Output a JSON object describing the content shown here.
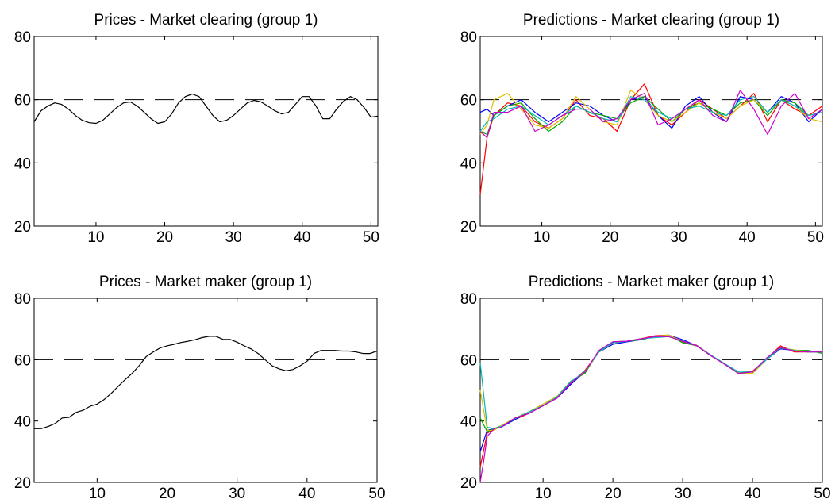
{
  "chart_data": [
    {
      "type": "line",
      "title": "Prices - Market clearing (group 1)",
      "xlabel": "",
      "ylabel": "",
      "xlim": [
        1,
        51
      ],
      "ylim": [
        20,
        80
      ],
      "xticks": [
        10,
        20,
        30,
        40,
        50
      ],
      "yticks": [
        20,
        40,
        60,
        80
      ],
      "grid": false,
      "reference_line": {
        "y": 60,
        "style": "dashed",
        "color": "#000000"
      },
      "series": [
        {
          "color": "#000000",
          "x": [
            1,
            2,
            3,
            4,
            5,
            6,
            7,
            8,
            9,
            10,
            11,
            12,
            13,
            14,
            15,
            16,
            17,
            18,
            19,
            20,
            21,
            22,
            23,
            24,
            25,
            26,
            27,
            28,
            29,
            30,
            31,
            32,
            33,
            34,
            35,
            36,
            37,
            38,
            39,
            40,
            41,
            42,
            43,
            44,
            45,
            46,
            47,
            48,
            49,
            50,
            51
          ],
          "y": [
            53,
            56.5,
            58,
            59,
            58.5,
            57,
            55,
            53.5,
            52.7,
            52.5,
            53.5,
            55.5,
            57.5,
            59,
            59.3,
            58,
            56,
            54,
            52.5,
            53,
            55.5,
            59,
            61,
            61.8,
            61,
            58,
            55,
            53,
            53.5,
            55,
            57,
            59,
            59.8,
            59.3,
            58,
            56.5,
            55.5,
            56,
            58.5,
            61,
            61,
            58,
            54,
            54,
            57,
            59.5,
            61,
            60,
            57.5,
            54.5,
            54.8
          ]
        }
      ]
    },
    {
      "type": "line",
      "title": "Predictions - Market clearing (group 1)",
      "xlabel": "",
      "ylabel": "",
      "xlim": [
        1,
        51
      ],
      "ylim": [
        20,
        80
      ],
      "xticks": [
        10,
        20,
        30,
        40,
        50
      ],
      "yticks": [
        20,
        40,
        60,
        80
      ],
      "grid": false,
      "reference_line": {
        "y": 60,
        "style": "dashed",
        "color": "#000000"
      },
      "series": [
        {
          "color": "#ff0000",
          "x": [
            1,
            2,
            3,
            5,
            7,
            9,
            11,
            13,
            15,
            17,
            19,
            21,
            23,
            25,
            27,
            29,
            31,
            33,
            35,
            37,
            39,
            41,
            43,
            45,
            47,
            49,
            51
          ],
          "y": [
            30,
            48,
            55,
            59,
            58,
            53,
            51,
            54,
            60,
            55,
            54,
            50,
            60,
            65,
            55,
            52,
            56,
            60,
            57,
            54,
            58,
            62,
            53,
            60,
            57,
            55,
            58
          ]
        },
        {
          "color": "#0000ff",
          "x": [
            1,
            2,
            3,
            5,
            7,
            9,
            11,
            13,
            15,
            17,
            19,
            21,
            23,
            25,
            27,
            29,
            31,
            33,
            35,
            37,
            39,
            41,
            43,
            45,
            47,
            49,
            51
          ],
          "y": [
            56,
            57,
            55,
            58,
            60,
            56,
            53,
            56,
            59,
            58,
            55,
            53,
            60,
            61,
            55,
            51,
            58,
            61,
            56,
            53,
            61,
            60,
            56,
            61,
            59,
            53,
            57
          ]
        },
        {
          "color": "#00aa00",
          "x": [
            1,
            2,
            3,
            5,
            7,
            9,
            11,
            13,
            15,
            17,
            19,
            21,
            23,
            25,
            27,
            29,
            31,
            33,
            35,
            37,
            39,
            41,
            43,
            45,
            47,
            49,
            51
          ],
          "y": [
            50,
            49,
            55,
            58,
            59,
            54,
            50,
            53,
            58,
            56,
            55,
            54,
            59,
            61,
            57,
            53,
            57,
            59,
            57,
            55,
            59,
            60,
            55,
            60,
            59,
            55,
            56
          ]
        },
        {
          "color": "#e0c000",
          "x": [
            1,
            2,
            3,
            5,
            7,
            9,
            11,
            13,
            15,
            17,
            19,
            21,
            23,
            25,
            27,
            29,
            31,
            33,
            35,
            37,
            39,
            41,
            43,
            45,
            47,
            49,
            51
          ],
          "y": [
            49,
            52,
            60,
            62,
            57,
            52,
            51,
            54,
            61,
            57,
            53,
            52,
            63,
            60,
            55,
            53,
            56,
            59,
            56,
            54,
            58,
            60,
            56,
            60,
            58,
            54,
            53
          ]
        },
        {
          "color": "#00bbbb",
          "x": [
            1,
            2,
            3,
            5,
            7,
            9,
            11,
            13,
            15,
            17,
            19,
            21,
            23,
            25,
            27,
            29,
            31,
            33,
            35,
            37,
            39,
            41,
            43,
            45,
            47,
            49,
            51
          ],
          "y": [
            50,
            53,
            54,
            57,
            58,
            55,
            52,
            55,
            58,
            56,
            54,
            53,
            61,
            60,
            56,
            54,
            57,
            58,
            56,
            55,
            60,
            61,
            56,
            60,
            58,
            55,
            56
          ]
        },
        {
          "color": "#cc00cc",
          "x": [
            1,
            2,
            3,
            5,
            7,
            9,
            11,
            13,
            15,
            17,
            19,
            21,
            23,
            25,
            27,
            29,
            31,
            33,
            35,
            37,
            39,
            41,
            43,
            45,
            47,
            49,
            51
          ],
          "y": [
            50,
            48,
            56,
            56,
            58,
            50,
            52,
            55,
            57,
            57,
            53,
            54,
            60,
            62,
            52,
            54,
            57,
            60,
            55,
            53,
            63,
            57,
            49,
            58,
            62,
            54,
            57
          ]
        }
      ]
    },
    {
      "type": "line",
      "title": "Prices - Market maker (group 1)",
      "xlabel": "",
      "ylabel": "",
      "xlim": [
        1,
        50
      ],
      "ylim": [
        20,
        80
      ],
      "xticks": [
        10,
        20,
        30,
        40,
        50
      ],
      "yticks": [
        20,
        40,
        60,
        80
      ],
      "grid": false,
      "reference_line": {
        "y": 60,
        "style": "dashed",
        "color": "#000000"
      },
      "series": [
        {
          "color": "#000000",
          "x": [
            1,
            2,
            3,
            4,
            5,
            6,
            7,
            8,
            9,
            10,
            11,
            12,
            13,
            14,
            15,
            16,
            17,
            18,
            19,
            20,
            21,
            22,
            23,
            24,
            25,
            26,
            27,
            28,
            29,
            30,
            31,
            32,
            33,
            34,
            35,
            36,
            37,
            38,
            39,
            40,
            41,
            42,
            43,
            44,
            45,
            46,
            47,
            48,
            49,
            50
          ],
          "y": [
            37.5,
            37.5,
            38.2,
            39.2,
            41,
            41.2,
            42.8,
            43.5,
            44.8,
            45.5,
            47,
            49,
            51.3,
            53.5,
            55.5,
            58,
            61,
            62.5,
            63.8,
            64.5,
            65,
            65.6,
            66,
            66.5,
            67.2,
            67.6,
            67.6,
            66.6,
            66.6,
            65.7,
            64.5,
            63.5,
            62,
            60,
            58,
            57,
            56.4,
            56.8,
            58,
            59.5,
            62,
            63,
            63,
            63,
            62.8,
            62.8,
            62.5,
            62,
            62,
            62.8
          ]
        }
      ]
    },
    {
      "type": "line",
      "title": "Predictions - Market maker (group 1)",
      "xlabel": "",
      "ylabel": "",
      "xlim": [
        1,
        50
      ],
      "ylim": [
        20,
        80
      ],
      "xticks": [
        10,
        20,
        30,
        40,
        50
      ],
      "yticks": [
        20,
        40,
        60,
        80
      ],
      "grid": false,
      "reference_line": {
        "y": 60,
        "style": "dashed",
        "color": "#000000"
      },
      "series": [
        {
          "color": "#ff0000",
          "x": [
            1,
            2,
            3,
            4,
            6,
            8,
            10,
            12,
            14,
            16,
            18,
            20,
            22,
            24,
            26,
            28,
            30,
            32,
            34,
            36,
            38,
            40,
            42,
            44,
            46,
            48,
            50
          ],
          "y": [
            25,
            36,
            37.5,
            38.2,
            40.5,
            42.5,
            45,
            47.5,
            52.5,
            56.5,
            62.5,
            65.5,
            66,
            66.8,
            67.8,
            68,
            65.8,
            64.7,
            61.5,
            58.7,
            55.8,
            56.2,
            60.2,
            64.5,
            62.5,
            62.5,
            62.5
          ]
        },
        {
          "color": "#0000ff",
          "x": [
            1,
            2,
            3,
            4,
            6,
            8,
            10,
            12,
            14,
            16,
            18,
            20,
            22,
            24,
            26,
            28,
            30,
            32,
            34,
            36,
            38,
            40,
            42,
            44,
            46,
            48,
            50
          ],
          "y": [
            30,
            37,
            37.5,
            38,
            40.5,
            43,
            45,
            47.5,
            52,
            56,
            62.5,
            65,
            65.8,
            66.5,
            67.5,
            68,
            66.5,
            64.5,
            61.5,
            58.5,
            56,
            55.5,
            60,
            63.5,
            63,
            62.5,
            62.5
          ]
        },
        {
          "color": "#00aa00",
          "x": [
            1,
            2,
            3,
            4,
            6,
            8,
            10,
            12,
            14,
            16,
            18,
            20,
            22,
            24,
            26,
            28,
            30,
            32,
            34,
            36,
            38,
            40,
            42,
            44,
            46,
            48,
            50
          ],
          "y": [
            41,
            36.5,
            37.5,
            38.5,
            41,
            43,
            45.5,
            48,
            53,
            55.5,
            62.8,
            65.8,
            66,
            66.5,
            67.5,
            68,
            65.5,
            64.5,
            61.3,
            58.5,
            55.5,
            55.5,
            60.2,
            63.8,
            63,
            63,
            62
          ]
        },
        {
          "color": "#e0c000",
          "x": [
            1,
            2,
            3,
            4,
            6,
            8,
            10,
            12,
            14,
            16,
            18,
            20,
            22,
            24,
            26,
            28,
            30,
            32,
            34,
            36,
            38,
            40,
            42,
            44,
            46,
            48,
            50
          ],
          "y": [
            50,
            37,
            37,
            38.5,
            41,
            43,
            45.5,
            48,
            52.5,
            56,
            62.5,
            65.5,
            66,
            66.8,
            67.5,
            68,
            66,
            64.5,
            61.5,
            58.5,
            55.7,
            55.5,
            60,
            63.8,
            63.2,
            62.5,
            62.5
          ]
        },
        {
          "color": "#00bbbb",
          "x": [
            1,
            2,
            3,
            4,
            6,
            8,
            10,
            12,
            14,
            16,
            18,
            20,
            22,
            24,
            26,
            28,
            30,
            32,
            34,
            36,
            38,
            40,
            42,
            44,
            46,
            48,
            50
          ],
          "y": [
            59,
            38,
            37.5,
            38.2,
            40.8,
            43,
            45,
            47.8,
            52.8,
            56.2,
            62.5,
            65.5,
            66,
            66.8,
            67.2,
            67.5,
            66,
            64.5,
            61.5,
            58.7,
            56,
            56,
            60,
            63.8,
            63,
            62.5,
            62.5
          ]
        },
        {
          "color": "#cc00cc",
          "x": [
            1,
            1.5,
            2,
            3,
            4,
            6,
            8,
            10,
            12,
            14,
            16,
            18,
            20,
            22,
            24,
            26,
            28,
            30,
            32,
            34,
            36,
            38,
            40,
            42,
            44,
            46,
            48,
            50
          ],
          "y": [
            20,
            27,
            35,
            37.5,
            38,
            41,
            42.5,
            45,
            47.5,
            52.5,
            56,
            63,
            65.8,
            66,
            66.8,
            67.5,
            67.5,
            66,
            64.5,
            61.3,
            58.5,
            55.5,
            56,
            60.5,
            64,
            62.8,
            62.5,
            62.5
          ]
        }
      ]
    }
  ]
}
